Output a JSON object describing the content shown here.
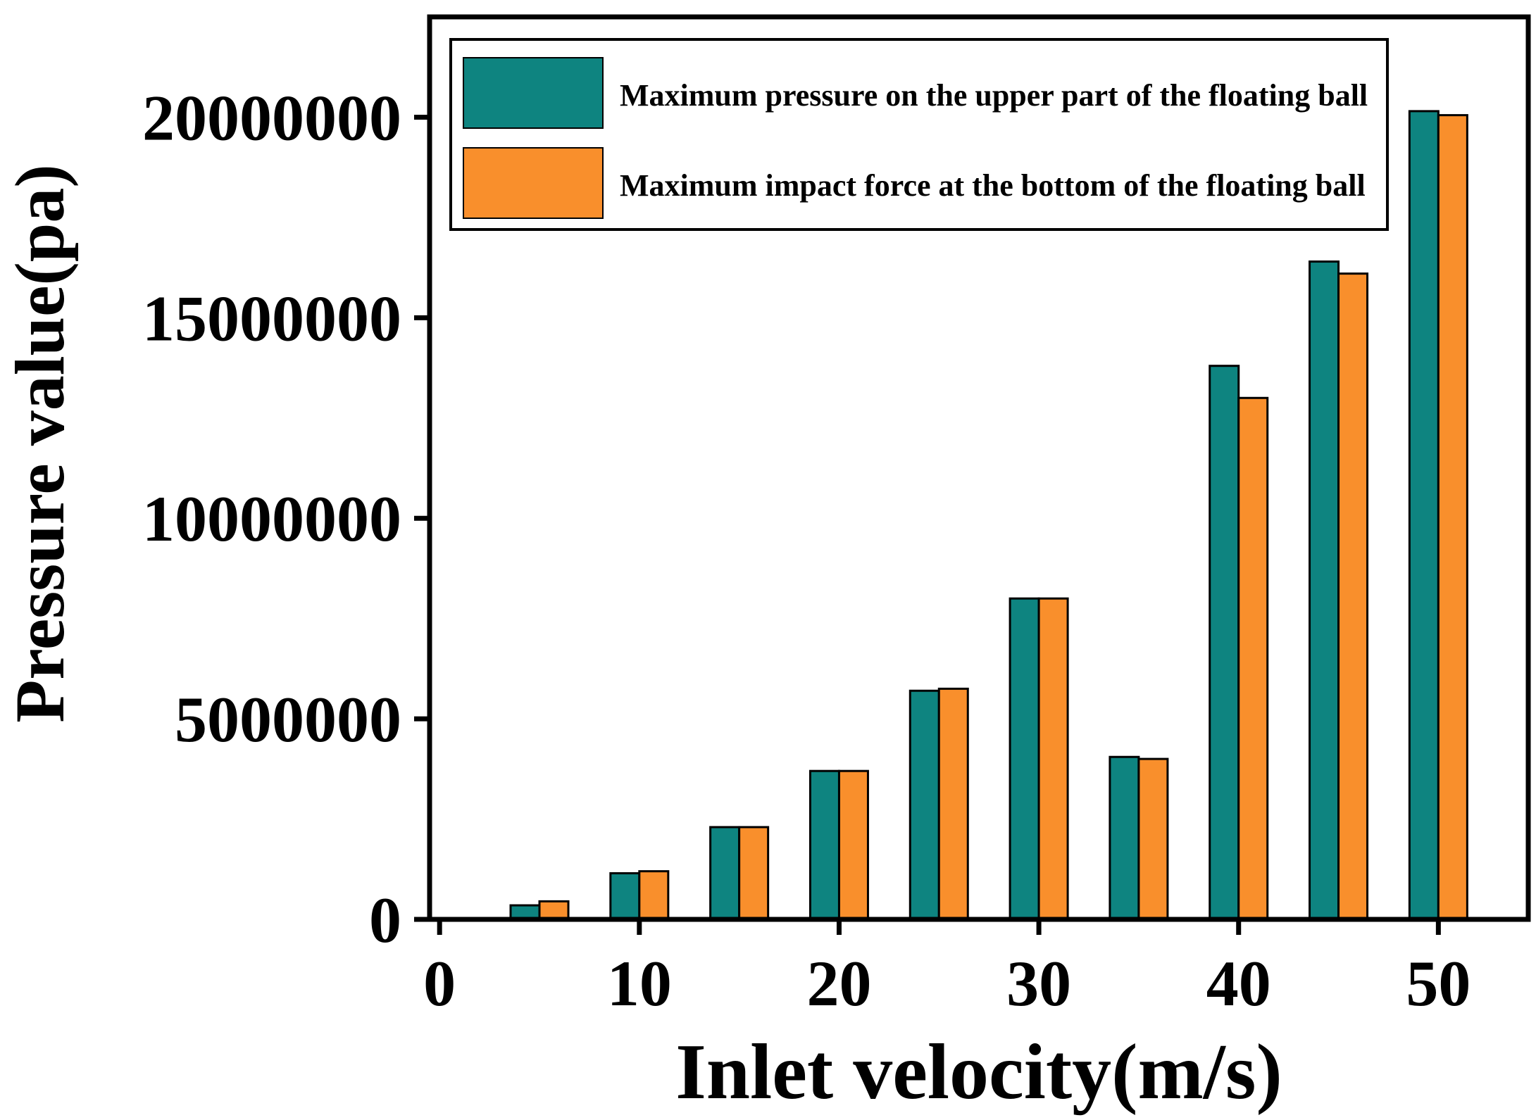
{
  "chart_data": {
    "type": "bar",
    "title": "",
    "xlabel": "Inlet velocity(m/s)",
    "ylabel": "Pressure value(pa)",
    "xlim": [
      -0.5,
      54.5
    ],
    "ylim": [
      0,
      22500000
    ],
    "x_ticks": [
      0,
      10,
      20,
      30,
      40,
      50
    ],
    "y_ticks": [
      0,
      5000000,
      10000000,
      15000000,
      20000000
    ],
    "categories": [
      5,
      10,
      15,
      20,
      25,
      30,
      35,
      40,
      45,
      50
    ],
    "series": [
      {
        "name": "Maximum pressure on the upper part of the floating ball",
        "color": "#0e8480",
        "values": [
          350000,
          1150000,
          2300000,
          3700000,
          5700000,
          8000000,
          4050000,
          13800000,
          16400000,
          20150000
        ]
      },
      {
        "name": "Maximum impact force at the bottom of the floating ball",
        "color": "#f98f2c",
        "values": [
          450000,
          1200000,
          2300000,
          3700000,
          5750000,
          8000000,
          4000000,
          13000000,
          16100000,
          20050000
        ]
      }
    ],
    "bar_border_color": "#000000",
    "axis_color": "#000000",
    "background": "#ffffff",
    "legend_position": "top-left",
    "grid": false
  }
}
